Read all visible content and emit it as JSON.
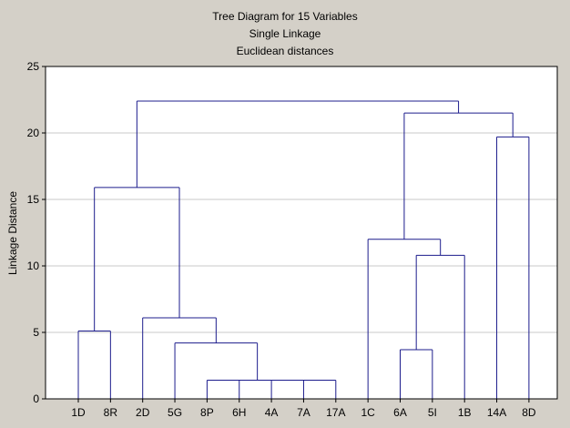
{
  "chart_data": {
    "type": "dendrogram",
    "title": "Tree Diagram for 15 Variables",
    "subtitle_1": "Single Linkage",
    "subtitle_2": "Euclidean distances",
    "xlabel": "",
    "ylabel": "Linkage Distance",
    "ylim": [
      0,
      25
    ],
    "yticks": [
      0,
      5,
      10,
      15,
      20,
      25
    ],
    "grid": true,
    "leaves": [
      "1D",
      "8R",
      "2D",
      "5G",
      "8P",
      "6H",
      "4A",
      "7A",
      "17A",
      "1C",
      "6A",
      "5I",
      "1B",
      "14A",
      "8D"
    ],
    "merges": [
      {
        "left_leaf": "1D",
        "right_leaf": "8R",
        "height": 5.1
      },
      {
        "left_leaf": "6H",
        "right_leaf": "4A",
        "height": 1.4
      },
      {
        "left_cluster": "6H+4A",
        "right_leaf": "7A",
        "height": 1.4
      },
      {
        "left_cluster": "6H..7A",
        "right_leaf": "17A",
        "height": 1.4
      },
      {
        "left_leaf": "8P",
        "right_cluster": "6H..17A",
        "height": 1.4
      },
      {
        "left_leaf": "5G",
        "right_cluster": "8P..17A",
        "height": 4.2
      },
      {
        "left_leaf": "2D",
        "right_cluster": "5G..17A",
        "height": 6.1
      },
      {
        "left_cluster": "1D..8R",
        "right_cluster": "2D..17A",
        "height": 15.9
      },
      {
        "left_leaf": "6A",
        "right_leaf": "5I",
        "height": 3.7
      },
      {
        "left_cluster": "6A..5I",
        "right_leaf": "1B",
        "height": 10.8
      },
      {
        "left_leaf": "1C",
        "right_cluster": "6A..1B",
        "height": 12.0
      },
      {
        "left_leaf": "14A",
        "right_leaf": "8D",
        "height": 19.7
      },
      {
        "left_cluster": "1C..1B",
        "right_cluster": "14A..8D",
        "height": 21.5
      },
      {
        "left_cluster": "1D..17A",
        "right_cluster": "1C..8D",
        "height": 22.4
      }
    ]
  },
  "colors": {
    "background": "#d4d0c8",
    "plot_area": "#ffffff",
    "tree_line": "#1c1c8c",
    "grid_line": "#c8c8c8",
    "axis": "#000000"
  }
}
